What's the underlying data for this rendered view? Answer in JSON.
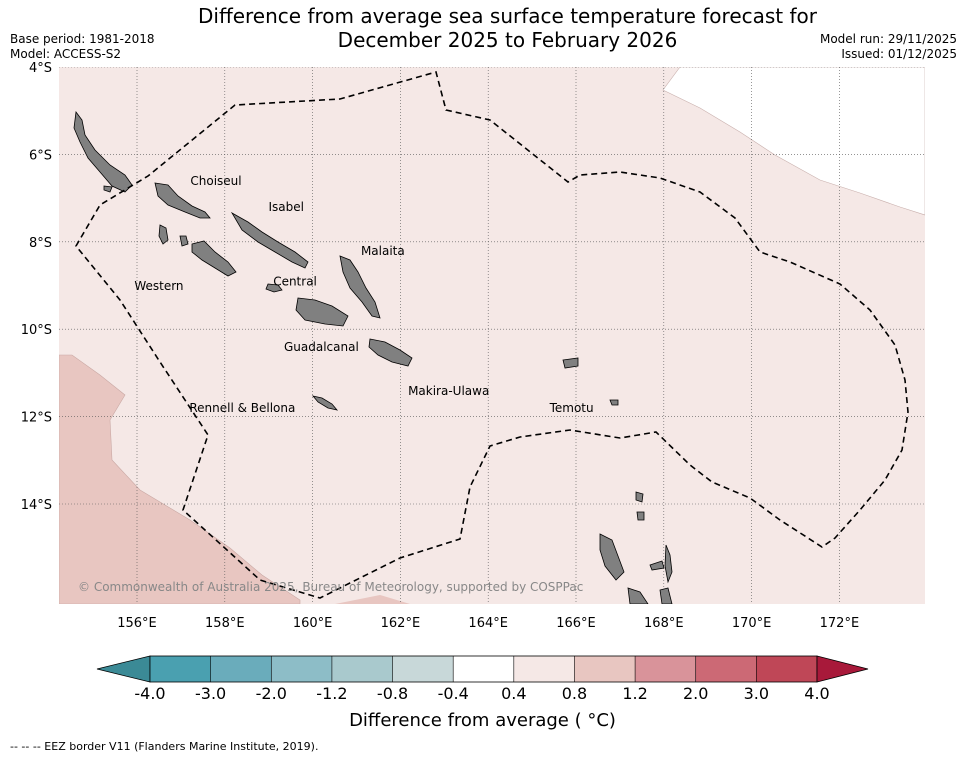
{
  "title_line1": "Difference from average sea surface temperature forecast for",
  "title_line2": "December 2025 to February 2026",
  "base_period": "Base period: 1981-2018",
  "model": "Model: ACCESS-S2",
  "model_run": "Model run: 29/11/2025",
  "issued": "Issued: 01/12/2025",
  "copyright": "© Commonwealth of Australia 2025, Bureau of Meteorology, supported by COSPPac",
  "footnote": "--  --  -- EEZ border V11 (Flanders Marine Institute, 2019).",
  "colorbar_title": "Difference from average ( °C)",
  "colorbar": {
    "ticks": [
      "-4.0",
      "-3.0",
      "-2.0",
      "-1.2",
      "-0.8",
      "-0.4",
      "0.4",
      "0.8",
      "1.2",
      "2.0",
      "3.0",
      "4.0"
    ],
    "colors": [
      "#4aa0b0",
      "#6aacbb",
      "#8dbdc7",
      "#a9c9cd",
      "#c8d8d9",
      "#ffffff",
      "#f5e8e6",
      "#e8c6c1",
      "#d9939a",
      "#cc6975",
      "#bf4757"
    ],
    "under_color": "#3b8a96",
    "over_color": "#a8193a"
  },
  "map": {
    "lon_labels": [
      "156°E",
      "158°E",
      "160°E",
      "162°E",
      "164°E",
      "166°E",
      "168°E",
      "170°E",
      "172°E"
    ],
    "lat_labels": [
      "4°S",
      "6°S",
      "8°S",
      "10°S",
      "12°S",
      "14°S"
    ],
    "lon_values": [
      156,
      158,
      160,
      162,
      164,
      166,
      168,
      170,
      172
    ],
    "lat_values": [
      -4,
      -6,
      -8,
      -10,
      -12,
      -14
    ],
    "ocean_color": "#f5e8e6",
    "warm_color": "#e8c6c1",
    "land_color": "#808080"
  },
  "provinces": [
    {
      "name": "Choiseul",
      "lon": 157.8,
      "lat": -6.7
    },
    {
      "name": "Isabel",
      "lon": 159.4,
      "lat": -7.3
    },
    {
      "name": "Malaita",
      "lon": 161.6,
      "lat": -8.3
    },
    {
      "name": "Western",
      "lon": 156.5,
      "lat": -9.1
    },
    {
      "name": "Central",
      "lon": 159.6,
      "lat": -9.0
    },
    {
      "name": "Guadalcanal",
      "lon": 160.2,
      "lat": -10.5
    },
    {
      "name": "Makira-Ulawa",
      "lon": 163.1,
      "lat": -11.5
    },
    {
      "name": "Rennell & Bellona",
      "lon": 158.4,
      "lat": -11.9
    },
    {
      "name": "Temotu",
      "lon": 165.9,
      "lat": -11.9
    }
  ]
}
